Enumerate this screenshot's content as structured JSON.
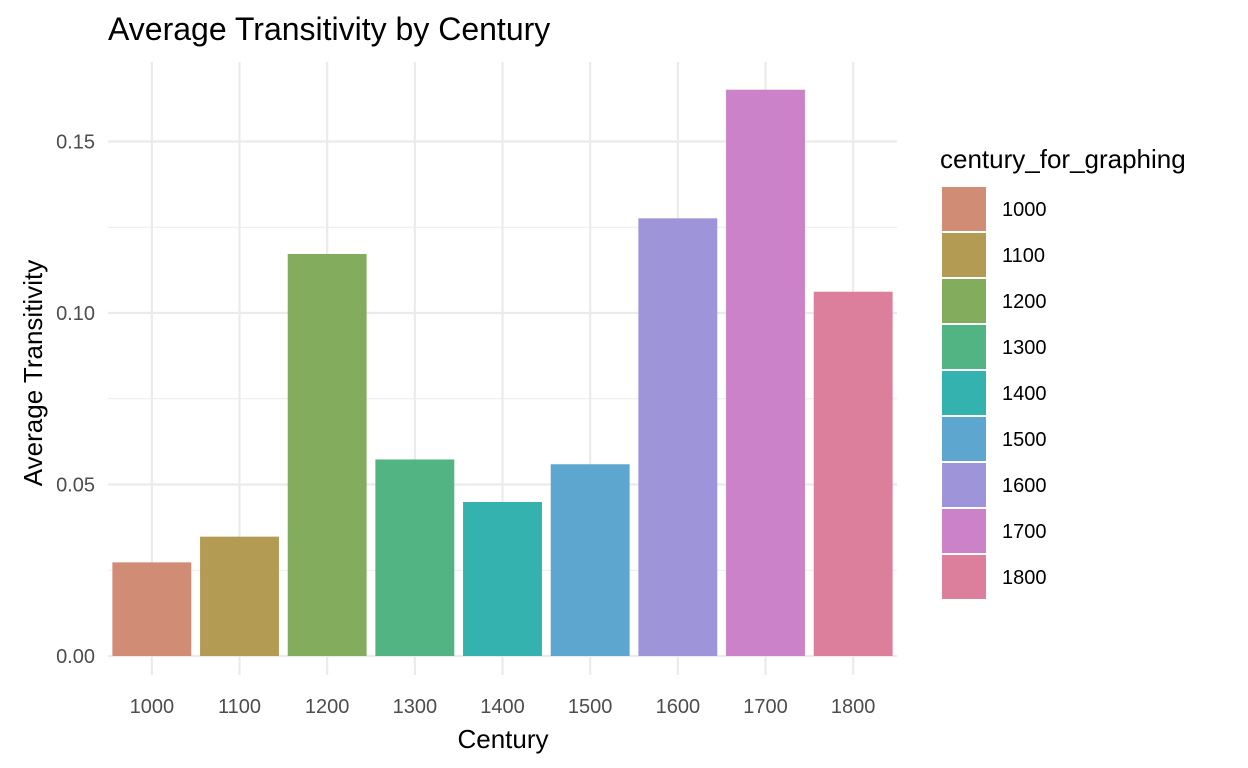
{
  "chart_data": {
    "type": "bar",
    "title": "Average Transitivity by Century",
    "xlabel": "Century",
    "ylabel": "Average Transitivity",
    "categories": [
      "1000",
      "1100",
      "1200",
      "1300",
      "1400",
      "1500",
      "1600",
      "1700",
      "1800"
    ],
    "values": [
      0.0273,
      0.0348,
      0.1172,
      0.0573,
      0.0449,
      0.0559,
      0.1276,
      0.1651,
      0.1062
    ],
    "colors": [
      "#D08C74",
      "#B39B53",
      "#84AC5D",
      "#52B482",
      "#33B2AF",
      "#5DA6D0",
      "#9E94DA",
      "#CB82C9",
      "#DC7F9D"
    ],
    "ylim": [
      0,
      0.172
    ],
    "yticks": [
      0,
      0.05,
      0.1,
      0.15
    ],
    "ytick_labels": [
      "0.00",
      "0.05",
      "0.10",
      "0.15"
    ],
    "grid": true,
    "legend": {
      "title": "century_for_graphing",
      "position": "right",
      "labels": [
        "1000",
        "1100",
        "1200",
        "1300",
        "1400",
        "1500",
        "1600",
        "1700",
        "1800"
      ]
    }
  }
}
